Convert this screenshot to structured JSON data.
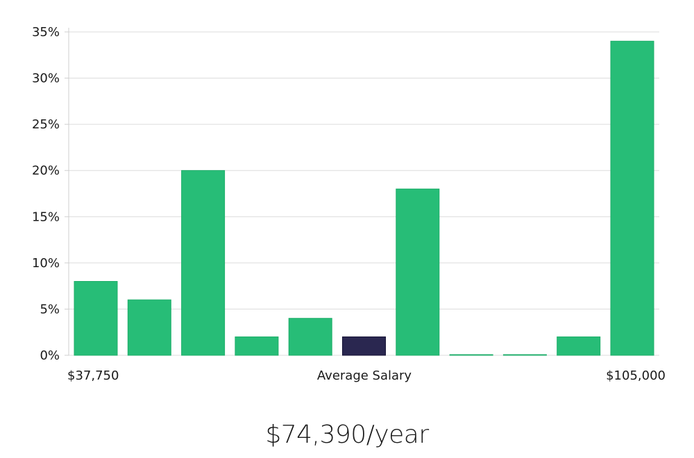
{
  "chart_data": {
    "type": "bar",
    "values": [
      8,
      6,
      20,
      2,
      4,
      2,
      18,
      0,
      0,
      2,
      34
    ],
    "highlight_index": 5,
    "ylim": [
      0,
      35
    ],
    "y_ticks": [
      0,
      5,
      10,
      15,
      20,
      25,
      30,
      35
    ],
    "y_tick_format": "%",
    "x_labels": {
      "left": "$37,750",
      "center": "Average Salary",
      "right": "$105,000"
    },
    "grid": true,
    "colors": {
      "bar": "#27bd77",
      "bar_stroke": "#1fae6a",
      "highlight": "#2a2750",
      "highlight_stroke": "#141235",
      "grid": "#dcdcdc",
      "axis": "#cfcfcf"
    }
  },
  "headline": {
    "salary": "$74,390/year"
  }
}
